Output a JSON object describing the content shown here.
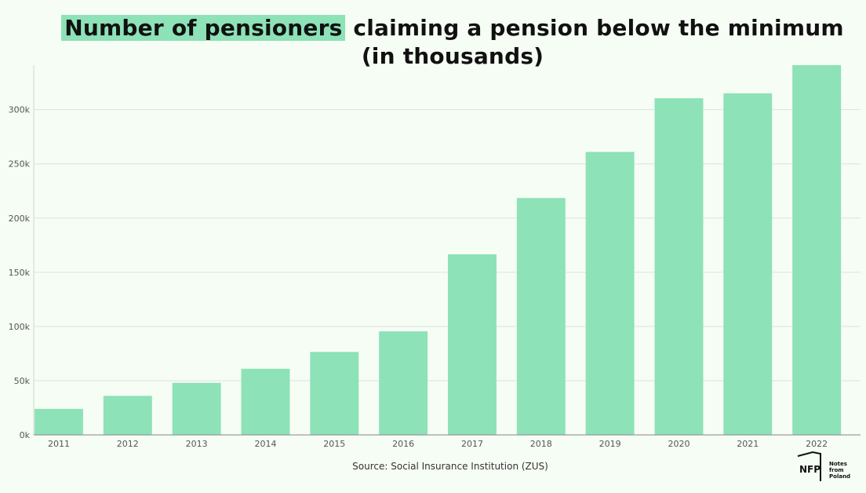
{
  "title": {
    "highlight": "Number of pensioners",
    "rest": " claiming a pension below the minimum",
    "line2": "(in thousands)"
  },
  "source": "Source: Social Insurance Institution (ZUS)",
  "logo": {
    "mark": "NFP",
    "line1": "Notes from",
    "line2": "Poland"
  },
  "colors": {
    "bar": "#8de2b7",
    "highlight": "#8de2b7",
    "background": "#f6fdf4"
  },
  "chart_data": {
    "type": "bar",
    "categories": [
      "2011",
      "2012",
      "2013",
      "2014",
      "2015",
      "2016",
      "2017",
      "2018",
      "2019",
      "2020",
      "2021",
      "2022"
    ],
    "values": [
      24000,
      36000,
      48000,
      61000,
      76500,
      95500,
      166500,
      218500,
      261000,
      310500,
      315000,
      341000
    ],
    "ylim": [
      0,
      341000
    ],
    "yticks": [
      0,
      50000,
      100000,
      150000,
      200000,
      250000,
      300000
    ],
    "ytick_labels": [
      "0k",
      "50k",
      "100k",
      "150k",
      "200k",
      "250k",
      "300k"
    ],
    "grid": true,
    "xlabel": "",
    "ylabel": ""
  }
}
